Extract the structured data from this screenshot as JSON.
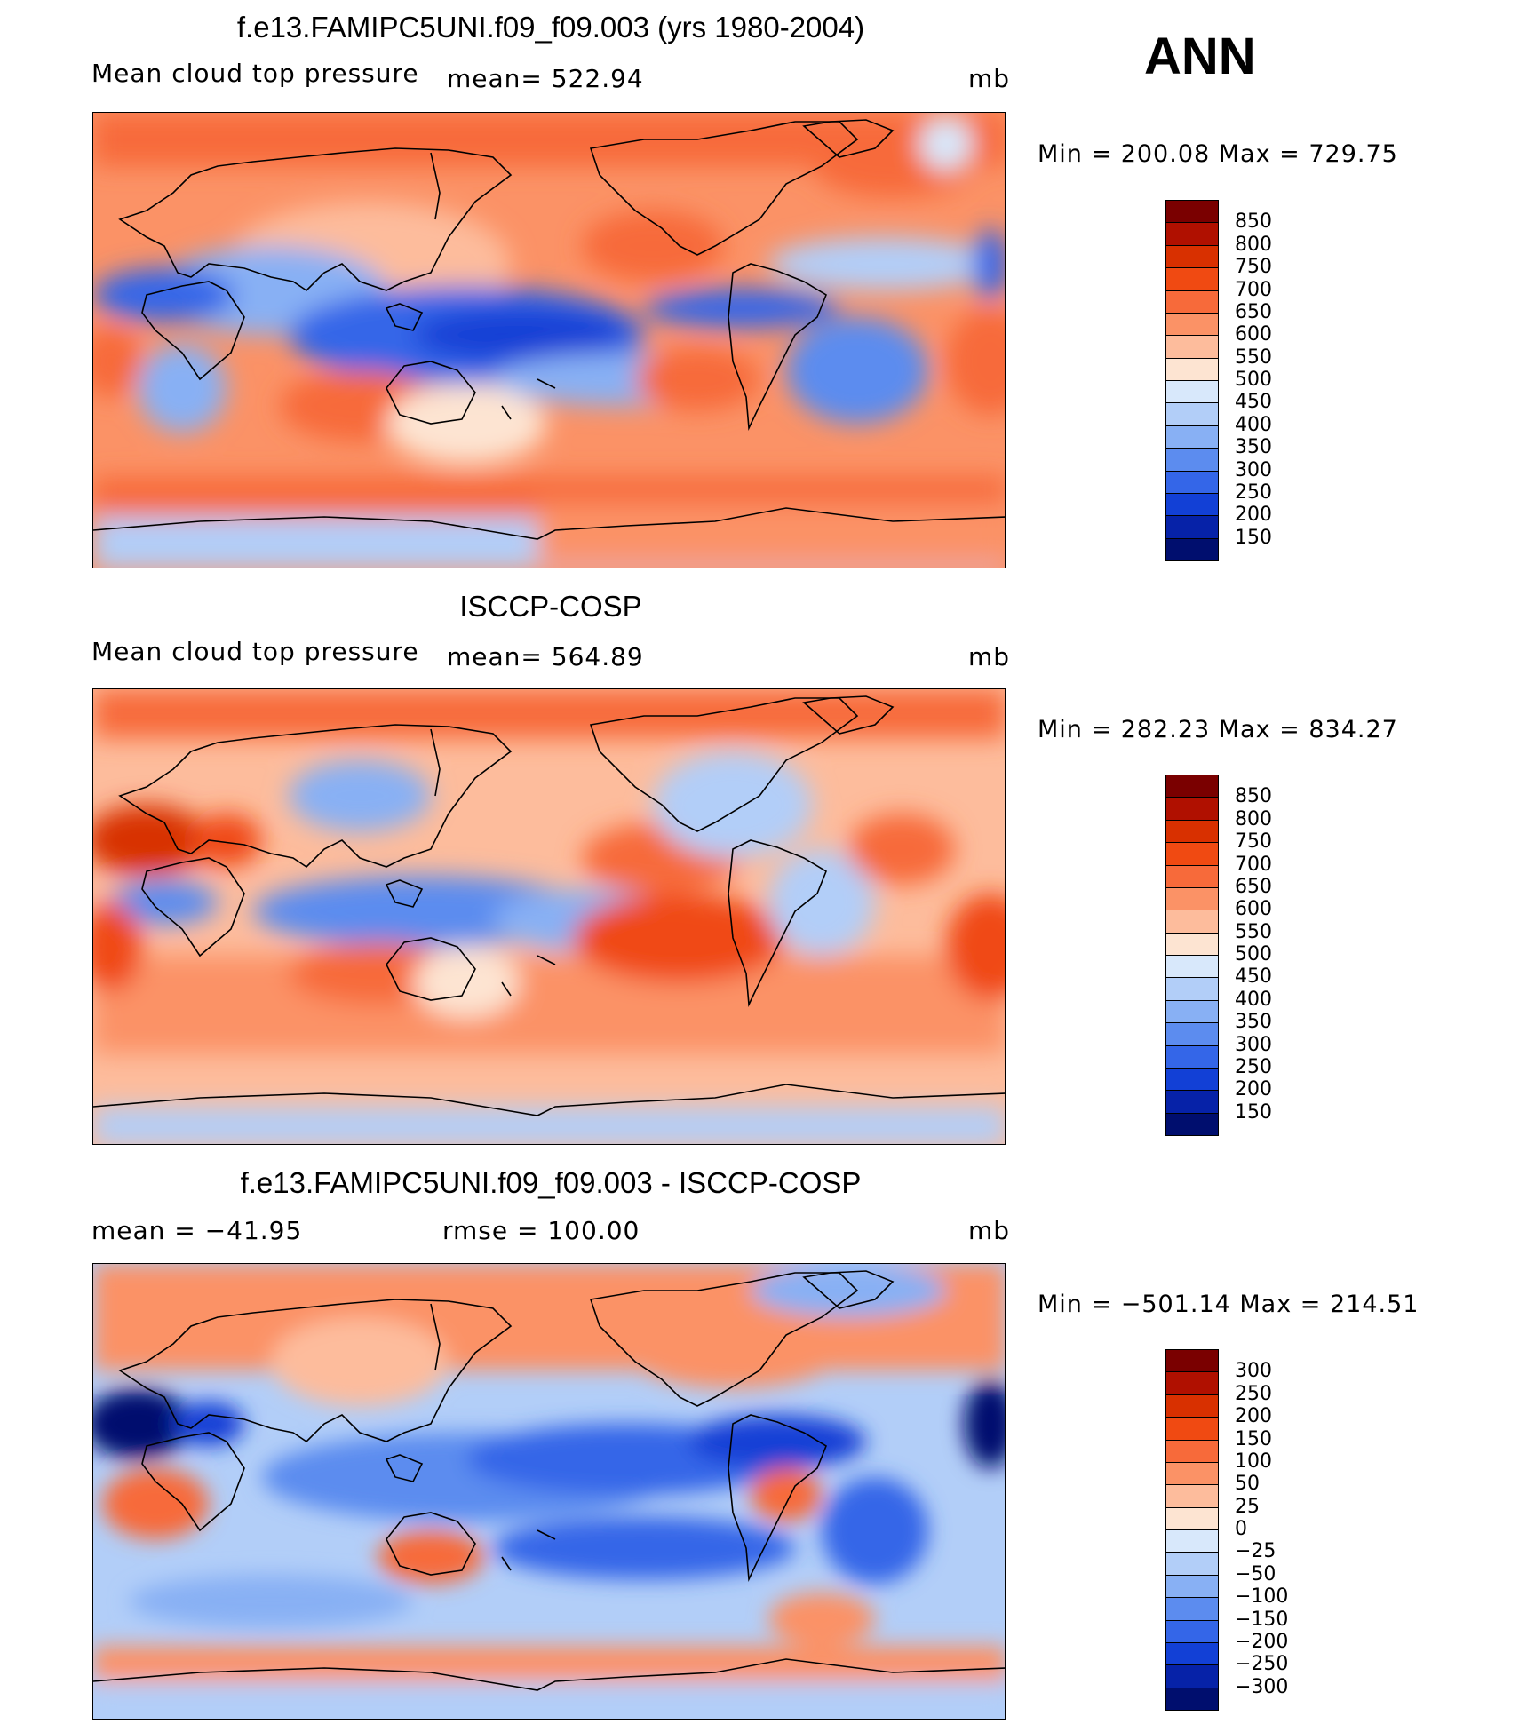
{
  "season": "ANN",
  "panels": [
    {
      "title": "f.e13.FAMIPC5UNI.f09_f09.003 (yrs 1980-2004)",
      "left_label": "Mean cloud top pressure",
      "mid_label": "mean=  522.94",
      "units": "mb",
      "minmax": "Min  =  200.08  Max  =  729.75"
    },
    {
      "title": "ISCCP-COSP",
      "left_label": "Mean cloud top pressure",
      "mid_label": "mean=  564.89",
      "units": "mb",
      "minmax": "Min  =  282.23  Max  =  834.27"
    },
    {
      "title": "f.e13.FAMIPC5UNI.f09_f09.003 - ISCCP-COSP",
      "left_label": "mean  =  −41.95",
      "mid_label": "rmse  =  100.00",
      "units": "mb",
      "minmax": "Min  =  −501.14  Max  =  214.51"
    }
  ],
  "colorbar_abs": {
    "labels": [
      "850",
      "800",
      "750",
      "700",
      "650",
      "600",
      "550",
      "500",
      "450",
      "400",
      "350",
      "300",
      "250",
      "200",
      "150"
    ],
    "colors": [
      "#7a0000",
      "#b01000",
      "#d83000",
      "#f04a12",
      "#f76a3a",
      "#fb9266",
      "#fdbc9c",
      "#fde4d2",
      "#d8e8fb",
      "#b2cef8",
      "#88b0f4",
      "#5c8cef",
      "#3466e8",
      "#1240d6",
      "#0622a8",
      "#000e6e"
    ]
  },
  "colorbar_diff": {
    "labels": [
      "300",
      "250",
      "200",
      "150",
      "100",
      "50",
      "25",
      "0",
      "−25",
      "−50",
      "−100",
      "−150",
      "−200",
      "−250",
      "−300"
    ],
    "colors": [
      "#7a0000",
      "#b01000",
      "#d83000",
      "#f04a12",
      "#f76a3a",
      "#fb9266",
      "#fdbc9c",
      "#fde4d2",
      "#d8e8fb",
      "#b2cef8",
      "#88b0f4",
      "#5c8cef",
      "#3466e8",
      "#1240d6",
      "#0622a8",
      "#000e6e"
    ]
  }
}
